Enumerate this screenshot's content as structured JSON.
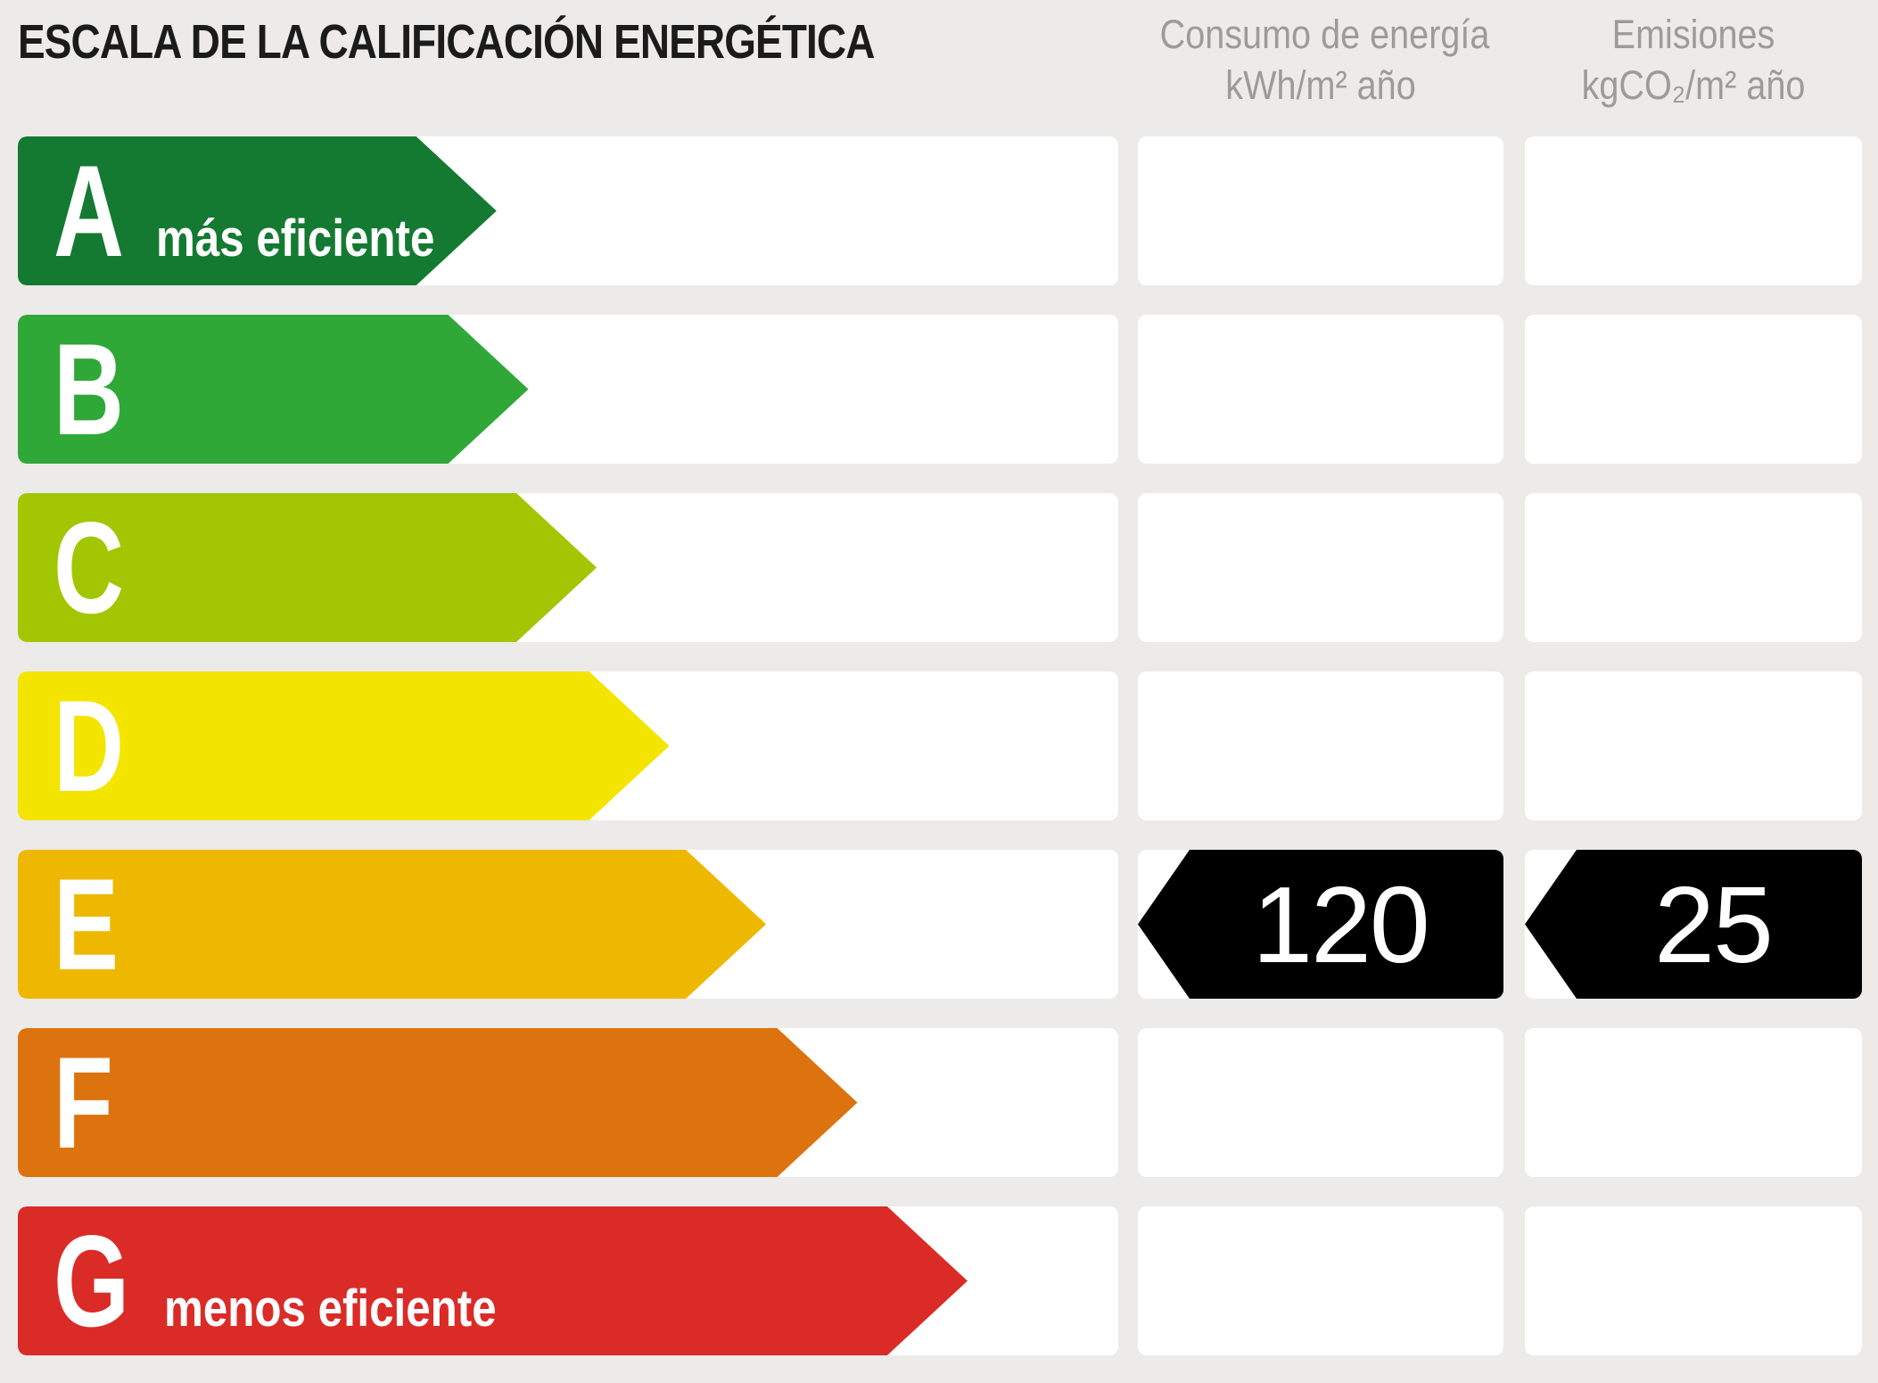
{
  "title": "ESCALA DE LA CALIFICACIÓN ENERGÉTICA",
  "columns": {
    "consumo": {
      "line1": "Consumo de energía",
      "line2": "kWh/m² año"
    },
    "emisiones": {
      "line1": "Emisiones",
      "line2": "kgCO₂/m² año"
    }
  },
  "colors": {
    "background": "#ECEBE9",
    "cell_white": "#FFFFFF",
    "header_text": "#9B9B9B",
    "title_text": "#1B1B1B",
    "badge_black": "#000000",
    "bar_text": "#FFFFFF"
  },
  "ratings": [
    {
      "letter": "A",
      "label": "más eficiente",
      "color": "#147A32",
      "width": "43.5%"
    },
    {
      "letter": "B",
      "label": "",
      "color": "#2FA838",
      "width": "46.4%"
    },
    {
      "letter": "C",
      "label": "",
      "color": "#A3C603",
      "width": "52.6%"
    },
    {
      "letter": "D",
      "label": "",
      "color": "#F3E500",
      "width": "59.2%"
    },
    {
      "letter": "E",
      "label": "",
      "color": "#EFB800",
      "width": "68.0%",
      "consumo": "120",
      "emisiones": "25"
    },
    {
      "letter": "F",
      "label": "",
      "color": "#DD730F",
      "width": "76.3%"
    },
    {
      "letter": "G",
      "label": "menos eficiente",
      "color": "#DA2B27",
      "width": "86.3%"
    }
  ],
  "chart_data": {
    "type": "bar",
    "title": "ESCALA DE LA CALIFICACIÓN ENERGÉTICA",
    "categories": [
      "A",
      "B",
      "C",
      "D",
      "E",
      "F",
      "G"
    ],
    "bar_relative_widths": [
      0.435,
      0.464,
      0.526,
      0.592,
      0.68,
      0.763,
      0.863
    ],
    "bar_colors": [
      "#147A32",
      "#2FA838",
      "#A3C603",
      "#F3E500",
      "#EFB800",
      "#DD730F",
      "#DA2B27"
    ],
    "annotations": [
      "A = más eficiente",
      "G = menos eficiente"
    ],
    "selected_rating": "E",
    "series": [
      {
        "name": "Consumo de energía kWh/m² año",
        "values": [
          null,
          null,
          null,
          null,
          120,
          null,
          null
        ]
      },
      {
        "name": "Emisiones kgCO₂/m² año",
        "values": [
          null,
          null,
          null,
          null,
          25,
          null,
          null
        ]
      }
    ],
    "legend_position": "top",
    "grid": false
  }
}
